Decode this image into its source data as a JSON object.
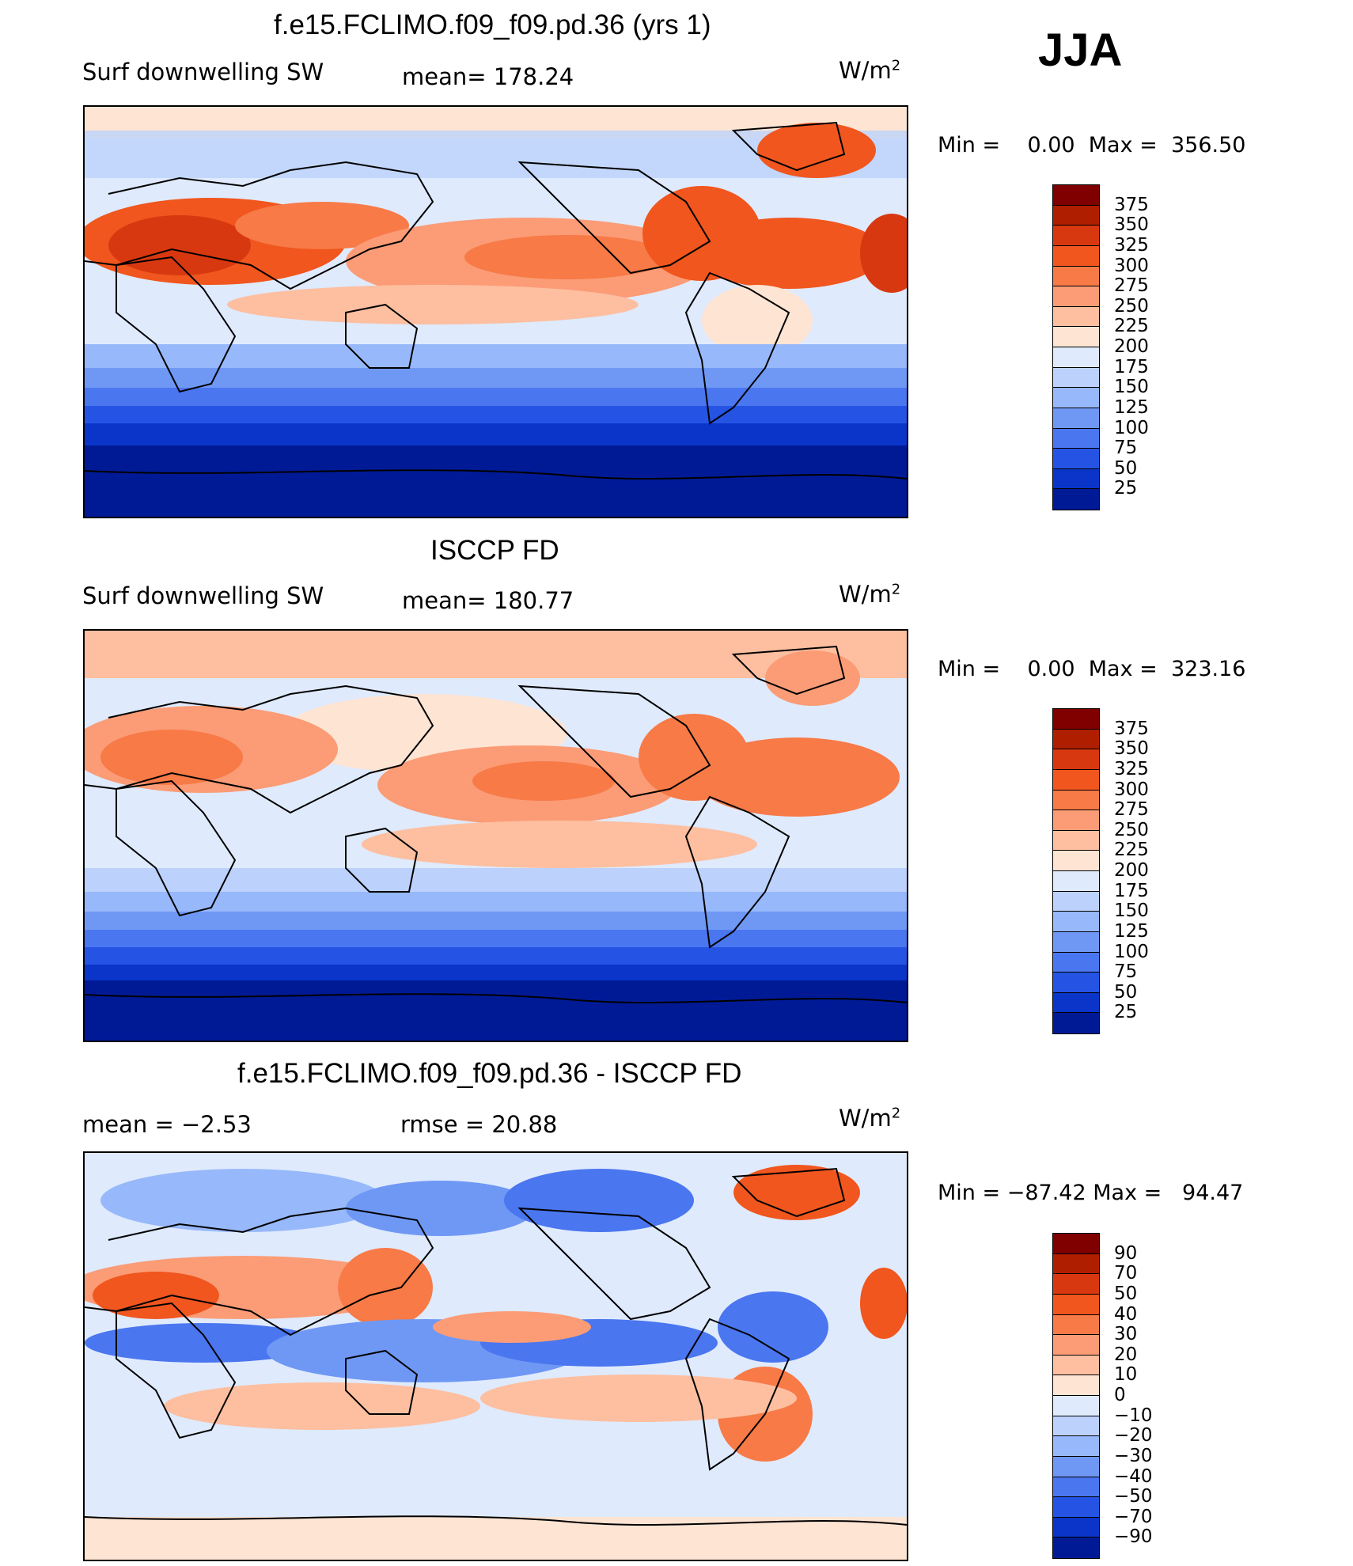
{
  "season": "JJA",
  "panels": [
    {
      "title": "f.e15.FCLIMO.f09_f09.pd.36 (yrs 1)",
      "left_label": "Surf  downwelling  SW",
      "center_label": "mean=  178.24",
      "unit": "W/m",
      "unit_exp": "2",
      "min_label": "Min  =",
      "min_value": "0.00",
      "max_label": "Max  =",
      "max_value": "356.50",
      "colorbar": {
        "labels": [
          "375",
          "350",
          "325",
          "300",
          "275",
          "250",
          "225",
          "200",
          "175",
          "150",
          "125",
          "100",
          "75",
          "50",
          "25"
        ],
        "colors": [
          "#800000",
          "#b01e00",
          "#d83810",
          "#f0561e",
          "#f77a47",
          "#fb9c76",
          "#fdbfa0",
          "#fde4d3",
          "#dfeafd",
          "#bcd2fc",
          "#97b8fa",
          "#6f98f5",
          "#4a76ef",
          "#2554e4",
          "#0a35c8",
          "#001a96"
        ]
      }
    },
    {
      "title": "ISCCP FD",
      "left_label": "Surf  downwelling  SW",
      "center_label": "mean=  180.77",
      "unit": "W/m",
      "unit_exp": "2",
      "min_label": "Min  =",
      "min_value": "0.00",
      "max_label": "Max  =",
      "max_value": "323.16",
      "colorbar": {
        "labels": [
          "375",
          "350",
          "325",
          "300",
          "275",
          "250",
          "225",
          "200",
          "175",
          "150",
          "125",
          "100",
          "75",
          "50",
          "25"
        ],
        "colors": [
          "#800000",
          "#b01e00",
          "#d83810",
          "#f0561e",
          "#f77a47",
          "#fb9c76",
          "#fdbfa0",
          "#fde4d3",
          "#dfeafd",
          "#bcd2fc",
          "#97b8fa",
          "#6f98f5",
          "#4a76ef",
          "#2554e4",
          "#0a35c8",
          "#001a96"
        ]
      }
    },
    {
      "title": "f.e15.FCLIMO.f09_f09.pd.36 - ISCCP FD",
      "left_label": "mean  =    −2.53",
      "center_label": "rmse  =    20.88",
      "unit": "W/m",
      "unit_exp": "2",
      "min_label": "Min  =",
      "min_value": "−87.42",
      "max_label": "Max  =",
      "max_value": "94.47",
      "colorbar": {
        "labels": [
          "90",
          "70",
          "50",
          "40",
          "30",
          "20",
          "10",
          "0",
          "−10",
          "−20",
          "−30",
          "−40",
          "−50",
          "−70",
          "−90"
        ],
        "colors": [
          "#800000",
          "#b01e00",
          "#d83810",
          "#f0561e",
          "#f77a47",
          "#fb9c76",
          "#fdbfa0",
          "#fde4d3",
          "#dfeafd",
          "#bcd2fc",
          "#97b8fa",
          "#6f98f5",
          "#4a76ef",
          "#2554e4",
          "#0a35c8",
          "#001a96"
        ]
      }
    }
  ]
}
